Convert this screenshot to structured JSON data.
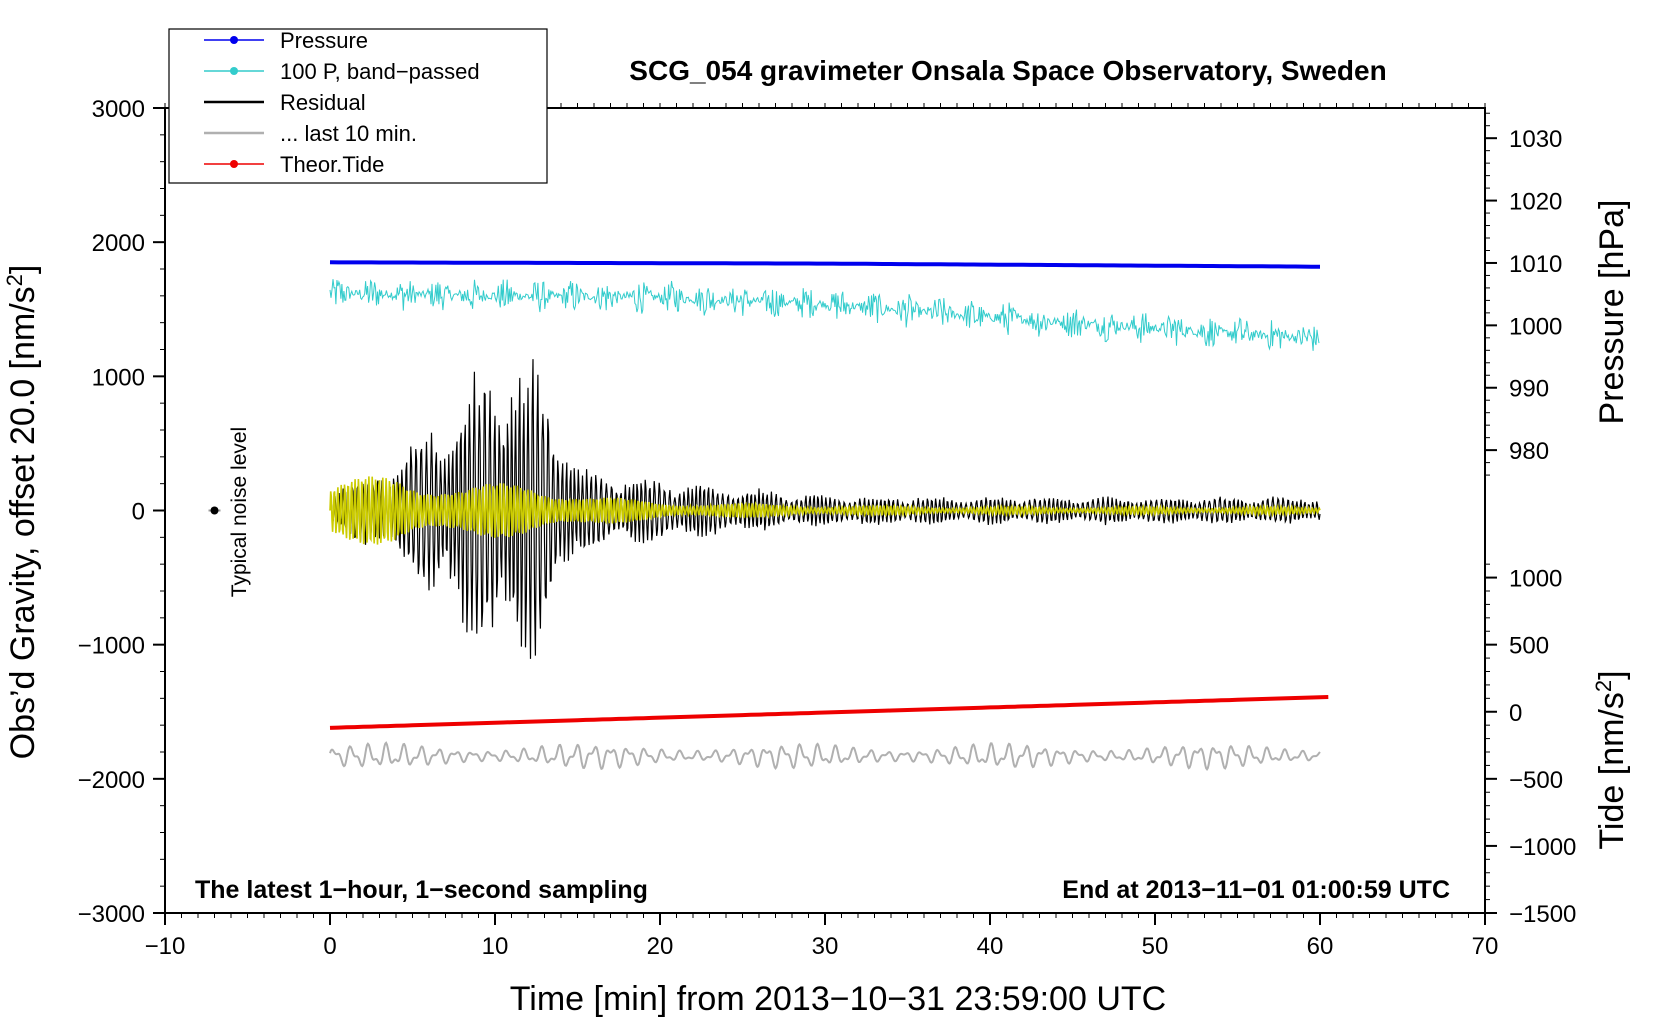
{
  "chart_data": {
    "type": "line",
    "title": "SCG_054 gravimeter Onsala Space Observatory, Sweden",
    "xlabel": "Time [min] from 2013−10−31 23:59:00 UTC",
    "ylabel_left": "Obs’d Gravity, offset 20.0 [nm/s²]",
    "ylabel_left_main": "Obs’d Gravity, offset 20.0 [nm/s",
    "ylabel_right_pressure": "Pressure [hPa]",
    "ylabel_right_tide_main": "Tide [nm/s",
    "superscript": "2",
    "close_bracket": "]",
    "footer_left": "The latest 1−hour, 1−second sampling",
    "footer_right": "End at 2013−11−01 01:00:59 UTC",
    "noise_label": "Typical noise level",
    "xlim": [
      -10,
      70
    ],
    "ylim_left": [
      -3000,
      3000
    ],
    "x_ticks": [
      -10,
      0,
      10,
      20,
      30,
      40,
      50,
      60,
      70
    ],
    "x_tick_labels": [
      "−10",
      "0",
      "10",
      "20",
      "30",
      "40",
      "50",
      "60",
      "70"
    ],
    "y_left_ticks": [
      -3000,
      -2000,
      -1000,
      0,
      1000,
      2000,
      3000
    ],
    "y_left_tick_labels": [
      "−3000",
      "−2000",
      "−1000",
      "0",
      "1000",
      "2000",
      "3000"
    ],
    "pressure_axis": {
      "ticks": [
        980,
        990,
        1000,
        1010,
        1020,
        1030
      ],
      "tick_labels": [
        "980",
        "990",
        "1000",
        "1010",
        "1020",
        "1030"
      ],
      "gravity_equivalent_at_980": 450,
      "gravity_per_hPa": 46.5
    },
    "tide_axis": {
      "ticks": [
        -1500,
        -1000,
        -500,
        0,
        500,
        1000
      ],
      "tick_labels": [
        "−1500",
        "−1000",
        "−500",
        "0",
        "500",
        "1000"
      ],
      "gravity_equivalent_at_0": -1500,
      "gravity_per_unit": 1.0
    },
    "legend": {
      "placement": "top-left",
      "entries": [
        {
          "label": "Pressure",
          "color": "#0000ee",
          "marker": true
        },
        {
          "label": "100 P, band−passed",
          "color": "#33cccc",
          "marker": true
        },
        {
          "label": "Residual",
          "color": "#000000",
          "marker": false
        },
        {
          "label": "... last 10 min.",
          "color": "#b0b0b0",
          "marker": false
        },
        {
          "label": "Theor.Tide",
          "color": "#ee0000",
          "marker": true
        }
      ]
    },
    "series": [
      {
        "name": "Pressure",
        "color": "#0000ee",
        "x": [
          0,
          30,
          60
        ],
        "values_hPa": [
          1010.1,
          1009.9,
          1009.4
        ]
      },
      {
        "name": "100 P, band−passed",
        "color": "#33cccc",
        "x": [
          0,
          10,
          20,
          30,
          40,
          50,
          60
        ],
        "values": [
          1620,
          1600,
          1590,
          1540,
          1440,
          1360,
          1280
        ],
        "noise_amplitude": 130
      },
      {
        "name": "Residual",
        "color": "#000000",
        "x": [
          0,
          4,
          9,
          12.5,
          15,
          20,
          30,
          40,
          50,
          60
        ],
        "amplitude": [
          150,
          400,
          1100,
          1250,
          350,
          250,
          120,
          110,
          110,
          110
        ],
        "center": 0
      },
      {
        "name": "Residual filtered",
        "color": "#cccc00",
        "x": [
          0,
          4,
          8,
          12,
          16,
          20,
          30,
          40,
          60
        ],
        "amplitude": [
          200,
          300,
          180,
          230,
          110,
          70,
          40,
          30,
          30
        ],
        "center": 0
      },
      {
        "name": "... last 10 min.",
        "color": "#b0b0b0",
        "x": [
          0,
          60
        ],
        "center": -1830,
        "amplitude": 90
      },
      {
        "name": "Theor.Tide",
        "color": "#ee0000",
        "x": [
          0,
          60.5
        ],
        "values": [
          -120,
          110
        ]
      }
    ],
    "noise_marker": {
      "x": -7,
      "y": 0,
      "color": "#000000"
    }
  }
}
